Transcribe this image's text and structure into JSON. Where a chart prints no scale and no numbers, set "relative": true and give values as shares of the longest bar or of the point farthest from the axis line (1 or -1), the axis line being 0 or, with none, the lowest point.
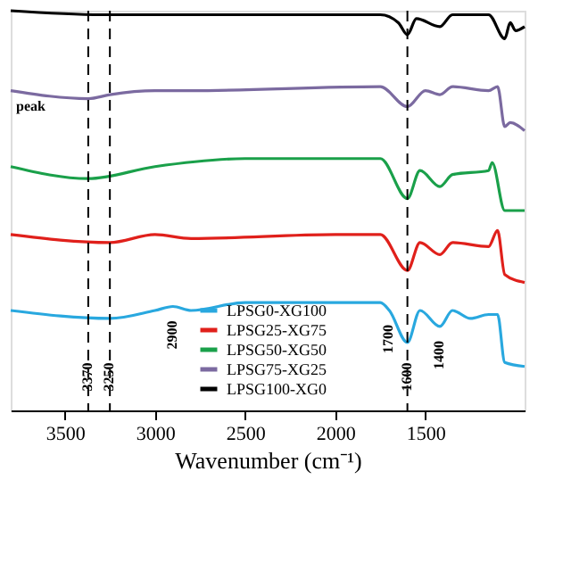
{
  "chart_data": {
    "type": "line",
    "relative": true,
    "xlabel": "Wavenumber (cm⁻¹)",
    "xlim": [
      3800,
      950
    ],
    "xticks": [
      3500,
      3000,
      2500,
      2000,
      1500
    ],
    "legend": "bottom",
    "line_style": "solid",
    "grid": false,
    "series": [
      {
        "name": "LPSG0-XG100",
        "color": "#29a8df",
        "x": [
          3800,
          3250,
          3000,
          2900,
          2800,
          2500,
          1750,
          1700,
          1600,
          1530,
          1420,
          1350,
          1250,
          1150,
          1100,
          1060,
          950
        ],
        "values": [
          0.25,
          0.23,
          0.25,
          0.26,
          0.25,
          0.27,
          0.27,
          0.25,
          0.17,
          0.25,
          0.21,
          0.25,
          0.23,
          0.24,
          0.24,
          0.12,
          0.11
        ]
      },
      {
        "name": "LPSG25-XG75",
        "color": "#e0201b",
        "x": [
          3800,
          3250,
          3000,
          2800,
          2000,
          1750,
          1600,
          1530,
          1420,
          1350,
          1150,
          1100,
          1060,
          950
        ],
        "values": [
          0.44,
          0.42,
          0.44,
          0.43,
          0.44,
          0.44,
          0.35,
          0.42,
          0.39,
          0.42,
          0.41,
          0.45,
          0.34,
          0.32
        ]
      },
      {
        "name": "LPSG50-XG50",
        "color": "#1aa04a",
        "x": [
          3800,
          3370,
          3000,
          2500,
          1750,
          1600,
          1530,
          1420,
          1350,
          1150,
          1130,
          1060,
          950
        ],
        "values": [
          0.61,
          0.58,
          0.61,
          0.63,
          0.63,
          0.53,
          0.6,
          0.56,
          0.59,
          0.6,
          0.62,
          0.5,
          0.5
        ]
      },
      {
        "name": "LPSG75-XG25",
        "color": "#7b6aa0",
        "x": [
          3800,
          3370,
          3250,
          3000,
          2800,
          1750,
          1600,
          1500,
          1420,
          1350,
          1150,
          1100,
          1060,
          1030,
          950
        ],
        "values": [
          0.8,
          0.78,
          0.79,
          0.8,
          0.8,
          0.81,
          0.76,
          0.8,
          0.79,
          0.81,
          0.8,
          0.81,
          0.71,
          0.72,
          0.7
        ]
      },
      {
        "name": "LPSG100-XG0",
        "color": "#000000",
        "x": [
          3800,
          3300,
          2500,
          1750,
          1650,
          1600,
          1550,
          1420,
          1350,
          1150,
          1060,
          1030,
          1000,
          950
        ],
        "values": [
          1.0,
          0.99,
          0.99,
          0.99,
          0.97,
          0.94,
          0.98,
          0.96,
          0.99,
          0.99,
          0.93,
          0.97,
          0.95,
          0.96
        ]
      }
    ],
    "ref_lines": [
      {
        "axis": "x",
        "value": 3370,
        "label": "3370",
        "line_style": "dashed",
        "color": "#000000"
      },
      {
        "axis": "x",
        "value": 3250,
        "label": "3250",
        "line_style": "dashed",
        "color": "#000000"
      },
      {
        "axis": "x",
        "value": 1600,
        "label": "1600",
        "line_style": "dashed",
        "color": "#000000"
      }
    ],
    "annotations": [
      "peak",
      {
        "text": "2900",
        "x": 2900,
        "y": 0.26
      },
      {
        "text": "1700",
        "x": 1700,
        "y": 0.25
      },
      {
        "text": "1400",
        "x": 1420,
        "y": 0.21
      }
    ]
  }
}
